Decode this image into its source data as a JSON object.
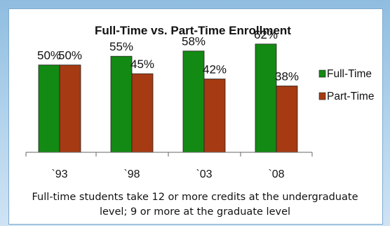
{
  "chart_data": {
    "type": "bar",
    "title": "Full-Time vs. Part-Time Enrollment",
    "categories": [
      "`93",
      "`98",
      "`03",
      "`08"
    ],
    "series": [
      {
        "name": "Full-Time",
        "values": [
          50,
          55,
          58,
          62
        ],
        "labels": [
          "50%",
          "55%",
          "58%",
          "62%"
        ],
        "color": "#138a13"
      },
      {
        "name": "Part-Time",
        "values": [
          50,
          45,
          42,
          38
        ],
        "labels": [
          "50%",
          "45%",
          "42%",
          "38%"
        ],
        "color": "#a63a12"
      }
    ],
    "ylim": [
      0,
      80
    ],
    "grid": false,
    "legend": "right"
  },
  "caption": {
    "line1": "Full-time students take 12 or more credits at the undergraduate",
    "line2": "level; 9 or more at the graduate level"
  }
}
